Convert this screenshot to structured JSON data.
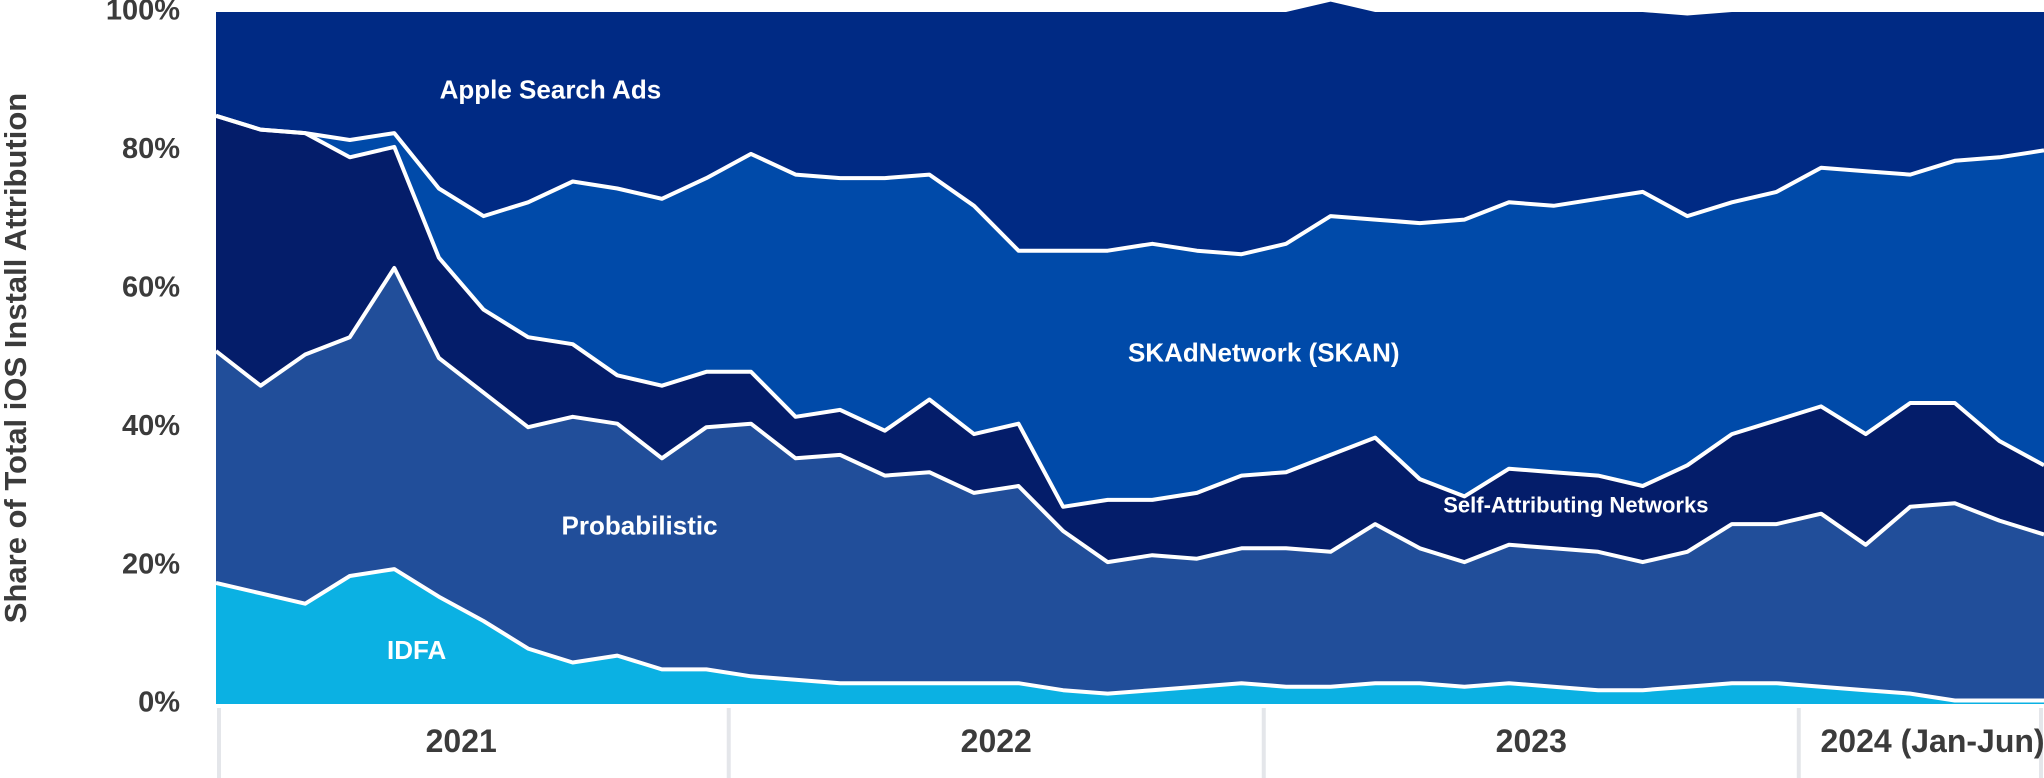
{
  "chart_data": {
    "type": "area",
    "stacked": true,
    "ylabel": "Share of Total iOS Install Attribution",
    "ylim": [
      0,
      100
    ],
    "yticks": [
      "0%",
      "20%",
      "40%",
      "60%",
      "80%",
      "100%"
    ],
    "year_labels": [
      "2021",
      "2022",
      "2023",
      "2024 (Jan-Jun)"
    ],
    "grid": false,
    "legend": "inline labels",
    "x": [
      "2021-01",
      "2021-02",
      "2021-03",
      "2021-04",
      "2021-05",
      "2021-06",
      "2021-07",
      "2021-08",
      "2021-09",
      "2021-10",
      "2021-11",
      "2021-12",
      "2022-01",
      "2022-02",
      "2022-03",
      "2022-04",
      "2022-05",
      "2022-06",
      "2022-07",
      "2022-08",
      "2022-09",
      "2022-10",
      "2022-11",
      "2022-12",
      "2023-01",
      "2023-02",
      "2023-03",
      "2023-04",
      "2023-05",
      "2023-06",
      "2023-07",
      "2023-08",
      "2023-09",
      "2023-10",
      "2023-11",
      "2023-12",
      "2024-01",
      "2024-02",
      "2024-03",
      "2024-04",
      "2024-05",
      "2024-06"
    ],
    "series": [
      {
        "name": "IDFA",
        "color": "#0bb1e3",
        "label_size": 26,
        "values": [
          17.5,
          16,
          14.5,
          18.5,
          19.5,
          15.5,
          12,
          8,
          6,
          7,
          5,
          5,
          4,
          3.5,
          3,
          3,
          3,
          3,
          3,
          2,
          1.5,
          2,
          2.5,
          3,
          2.5,
          2.5,
          3,
          3,
          2.5,
          3,
          2.5,
          2,
          2,
          2.5,
          3,
          3,
          2.5,
          2,
          1.5,
          0.5,
          0.5,
          0.5
        ]
      },
      {
        "name": "Probabilistic",
        "color": "#214e9a",
        "label_size": 26,
        "values": [
          33.5,
          30,
          36,
          34.5,
          43.5,
          34.5,
          33,
          32,
          35.5,
          33.5,
          30.5,
          35,
          36.5,
          32,
          33,
          30,
          30.5,
          27.5,
          28.5,
          23,
          19,
          19.5,
          18.5,
          19.5,
          20,
          19.5,
          23,
          19.5,
          18,
          20,
          20,
          20,
          18.5,
          19.5,
          23,
          23,
          25,
          21,
          27,
          28.5,
          26,
          24
        ]
      },
      {
        "name": "Self-Attributing Networks",
        "color": "#041d6a",
        "label_size": 22,
        "values": [
          34,
          37,
          32,
          26,
          17.5,
          14.5,
          12,
          13,
          10.5,
          7,
          10.5,
          8,
          7.5,
          6,
          6.5,
          6.5,
          10.5,
          8.5,
          9,
          3.5,
          9,
          8,
          9.5,
          10.5,
          11,
          14,
          12.5,
          10,
          9.5,
          11,
          11,
          11,
          11,
          12.5,
          13,
          15,
          15.5,
          16,
          15,
          14.5,
          11.5,
          10
        ]
      },
      {
        "name": "SKAdNetwork (SKAN)",
        "color": "#004aa9",
        "label_size": 26,
        "values": [
          0,
          0,
          0,
          2.5,
          2,
          10,
          13.5,
          19.5,
          23.5,
          27,
          27,
          28,
          31.5,
          35,
          33.5,
          36.5,
          32.5,
          33,
          25,
          37,
          36,
          37,
          35,
          32,
          33,
          34.5,
          31.5,
          37,
          40,
          38.5,
          38.5,
          40,
          42.5,
          36,
          33.5,
          33,
          34.5,
          38,
          33,
          35,
          41,
          45.5
        ]
      },
      {
        "name": "Apple Search Ads",
        "color": "#002a84",
        "label_size": 26,
        "values": [
          15,
          17,
          17.5,
          18.5,
          17.5,
          25.5,
          29.5,
          27.5,
          24.5,
          25.5,
          27,
          24,
          20.5,
          23.5,
          24,
          24,
          23.5,
          28,
          34.5,
          34.5,
          34.5,
          33.5,
          34.5,
          35,
          33.5,
          31,
          30,
          30.5,
          30,
          27.5,
          28,
          27,
          26,
          29,
          27.5,
          26,
          22.5,
          23,
          23.5,
          21.5,
          21,
          20
        ]
      }
    ]
  }
}
